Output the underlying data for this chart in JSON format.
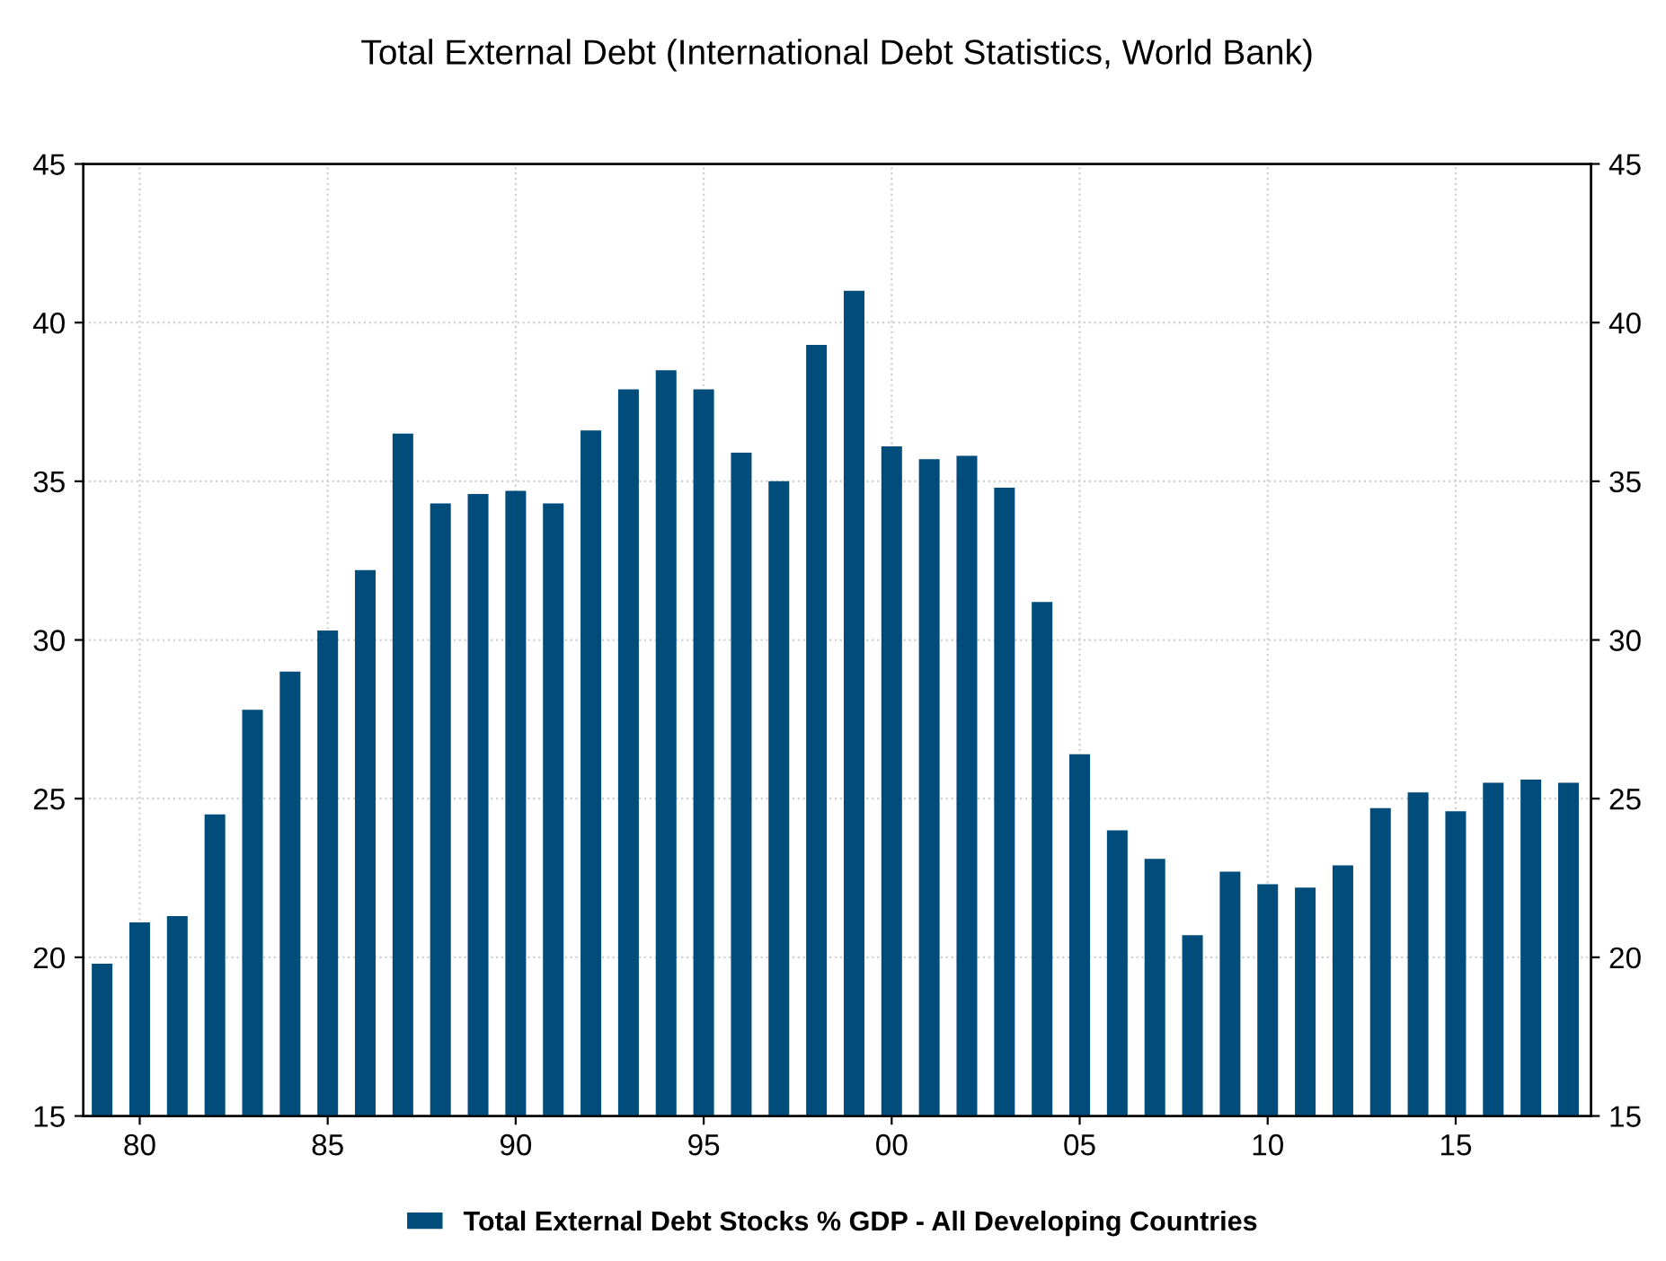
{
  "chart_data": {
    "type": "bar",
    "title": "Total External Debt (International Debt Statistics, World Bank)",
    "x": [
      1979,
      1980,
      1981,
      1982,
      1983,
      1984,
      1985,
      1986,
      1987,
      1988,
      1989,
      1990,
      1991,
      1992,
      1993,
      1994,
      1995,
      1996,
      1997,
      1998,
      1999,
      2000,
      2001,
      2002,
      2003,
      2004,
      2005,
      2006,
      2007,
      2008,
      2009,
      2010,
      2011,
      2012,
      2013,
      2014,
      2015,
      2016,
      2017,
      2018
    ],
    "series": [
      {
        "name": "Total External Debt Stocks % GDP - All Developing Countries",
        "color": "#004c7a",
        "values": [
          19.8,
          21.1,
          21.3,
          24.5,
          27.8,
          29.0,
          30.3,
          32.2,
          36.5,
          34.3,
          34.6,
          34.7,
          34.3,
          36.6,
          37.9,
          38.5,
          37.9,
          35.9,
          35.0,
          39.3,
          41.0,
          36.1,
          35.7,
          35.8,
          34.8,
          31.2,
          26.4,
          24.0,
          23.1,
          20.7,
          22.7,
          22.3,
          22.2,
          22.9,
          24.7,
          25.2,
          24.6,
          25.5,
          25.6,
          25.5
        ]
      }
    ],
    "xlim": [
      1978.5,
      2018.6
    ],
    "xticks": [
      {
        "value": 1980,
        "label": "80"
      },
      {
        "value": 1985,
        "label": "85"
      },
      {
        "value": 1990,
        "label": "90"
      },
      {
        "value": 1995,
        "label": "95"
      },
      {
        "value": 2000,
        "label": "00"
      },
      {
        "value": 2005,
        "label": "05"
      },
      {
        "value": 2010,
        "label": "10"
      },
      {
        "value": 2015,
        "label": "15"
      }
    ],
    "ylim": [
      15,
      45
    ],
    "yticks": [
      15,
      20,
      25,
      30,
      35,
      40,
      45
    ],
    "y2lim": [
      15,
      45
    ],
    "y2ticks": [
      15,
      20,
      25,
      30,
      35,
      40,
      45
    ],
    "grid": true,
    "legend": "bottom"
  }
}
